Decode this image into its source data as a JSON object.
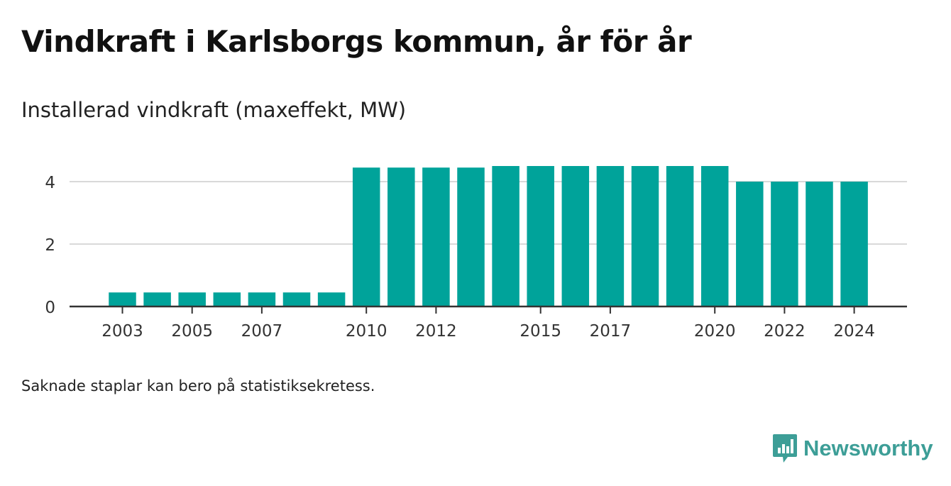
{
  "header": {
    "title": "Vindkraft i Karlsborgs kommun, år för år",
    "subtitle": "Installerad vindkraft (maxeffekt, MW)"
  },
  "footnote": "Saknade staplar kan bero på statistiksekretess.",
  "brand": {
    "name": "Newsworthy",
    "icon": "newsworthy-logo-icon",
    "color": "#3d9e97"
  },
  "chart_data": {
    "type": "bar",
    "title": "",
    "xlabel": "",
    "ylabel": "",
    "bar_color": "#00a39a",
    "categories": [
      2003,
      2004,
      2005,
      2006,
      2007,
      2008,
      2009,
      2010,
      2011,
      2012,
      2013,
      2014,
      2015,
      2016,
      2017,
      2018,
      2019,
      2020,
      2021,
      2022,
      2023,
      2024
    ],
    "values": [
      0.45,
      0.45,
      0.45,
      0.45,
      0.45,
      0.45,
      0.45,
      4.45,
      4.45,
      4.45,
      4.45,
      4.5,
      4.5,
      4.5,
      4.5,
      4.5,
      4.5,
      4.5,
      4.0,
      4.0,
      4.0,
      4.0
    ],
    "x_tick_labels": [
      "2003",
      "2005",
      "2007",
      "2010",
      "2012",
      "2015",
      "2017",
      "2020",
      "2022",
      "2024"
    ],
    "y_ticks": [
      0,
      2,
      4
    ],
    "ylim": [
      0,
      5
    ],
    "grid": "horizontal"
  }
}
